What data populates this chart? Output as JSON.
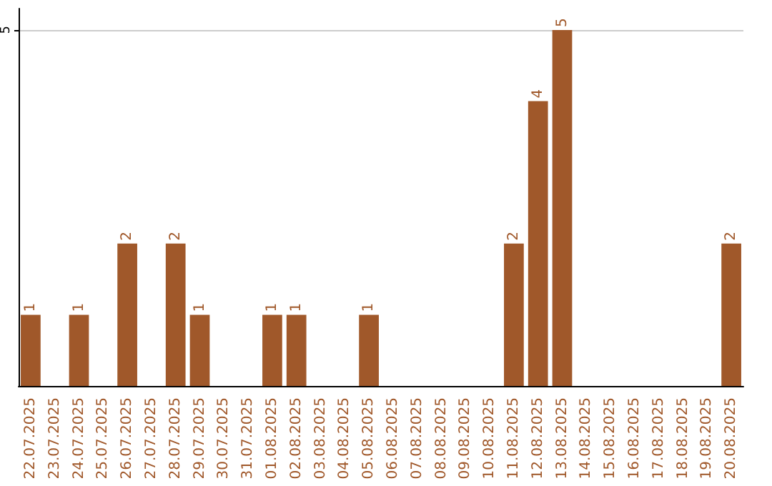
{
  "chart_data": {
    "type": "bar",
    "categories": [
      "22.07.2025",
      "23.07.2025",
      "24.07.2025",
      "25.07.2025",
      "26.07.2025",
      "27.07.2025",
      "28.07.2025",
      "29.07.2025",
      "30.07.2025",
      "31.07.2025",
      "01.08.2025",
      "02.08.2025",
      "03.08.2025",
      "04.08.2025",
      "05.08.2025",
      "06.08.2025",
      "07.08.2025",
      "08.08.2025",
      "09.08.2025",
      "10.08.2025",
      "11.08.2025",
      "12.08.2025",
      "13.08.2025",
      "14.08.2025",
      "15.08.2025",
      "16.08.2025",
      "17.08.2025",
      "18.08.2025",
      "19.08.2025",
      "20.08.2025"
    ],
    "values": [
      1,
      0,
      1,
      0,
      2,
      0,
      2,
      1,
      0,
      0,
      1,
      1,
      0,
      0,
      1,
      0,
      0,
      0,
      0,
      0,
      2,
      4,
      5,
      0,
      0,
      0,
      0,
      0,
      0,
      2
    ],
    "value_labels": [
      "1",
      null,
      "1",
      null,
      "2",
      null,
      "2",
      "1",
      null,
      null,
      "1",
      "1",
      null,
      null,
      "1",
      null,
      null,
      null,
      null,
      null,
      "2",
      "4",
      "5",
      null,
      null,
      null,
      null,
      null,
      null,
      "2"
    ],
    "color": "#a0582a",
    "ylim": [
      0,
      5.3
    ],
    "yticks": [
      5
    ],
    "grid": "y"
  }
}
